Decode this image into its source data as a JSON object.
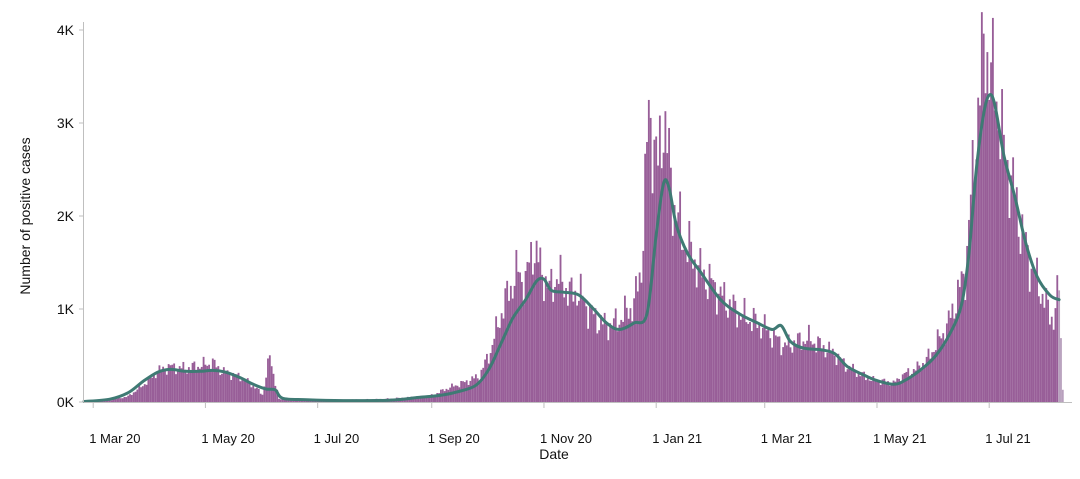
{
  "chart_data": {
    "type": "bar",
    "title": "",
    "xlabel": "Date",
    "ylabel": "Number of positive cases",
    "x_range": [
      "2020-02-25",
      "2021-08-15"
    ],
    "ylim": [
      0,
      4000
    ],
    "grid": false,
    "legend": "none",
    "yticks": [
      {
        "value": 0,
        "label": "0K"
      },
      {
        "value": 1000,
        "label": "1K"
      },
      {
        "value": 2000,
        "label": "2K"
      },
      {
        "value": 3000,
        "label": "3K"
      },
      {
        "value": 4000,
        "label": "4K"
      }
    ],
    "xticks": [
      {
        "date": "2020-03-01",
        "label": "1 Mar 20"
      },
      {
        "date": "2020-05-01",
        "label": "1 May 20"
      },
      {
        "date": "2020-07-01",
        "label": "1 Jul 20"
      },
      {
        "date": "2020-09-01",
        "label": "1 Sep 20"
      },
      {
        "date": "2020-11-01",
        "label": "1 Nov 20"
      },
      {
        "date": "2021-01-01",
        "label": "1 Jan 21"
      },
      {
        "date": "2021-03-01",
        "label": "1 Mar 21"
      },
      {
        "date": "2021-05-01",
        "label": "1 May 21"
      },
      {
        "date": "2021-07-01",
        "label": "1 Jul 21"
      }
    ],
    "colors": {
      "bars": "#985e98",
      "last_bars": "#b8a0bd",
      "trend": "#3f7a74"
    },
    "series": [
      {
        "type": "bar",
        "color": "#985e98",
        "points": [
          [
            "2020-03-01",
            10
          ],
          [
            "2020-03-10",
            20
          ],
          [
            "2020-03-20",
            60
          ],
          [
            "2020-03-28",
            180
          ],
          [
            "2020-04-05",
            330
          ],
          [
            "2020-04-12",
            380
          ],
          [
            "2020-04-20",
            360
          ],
          [
            "2020-04-28",
            390
          ],
          [
            "2020-05-05",
            420
          ],
          [
            "2020-05-10",
            330
          ],
          [
            "2020-05-20",
            270
          ],
          [
            "2020-05-28",
            160
          ],
          [
            "2020-06-01",
            80
          ],
          [
            "2020-06-05",
            490
          ],
          [
            "2020-06-10",
            30
          ],
          [
            "2020-06-20",
            20
          ],
          [
            "2020-07-01",
            20
          ],
          [
            "2020-07-20",
            25
          ],
          [
            "2020-08-05",
            30
          ],
          [
            "2020-08-20",
            50
          ],
          [
            "2020-09-01",
            70
          ],
          [
            "2020-09-10",
            150
          ],
          [
            "2020-09-20",
            220
          ],
          [
            "2020-09-27",
            280
          ],
          [
            "2020-10-03",
            550
          ],
          [
            "2020-10-08",
            900
          ],
          [
            "2020-10-13",
            1200
          ],
          [
            "2020-10-18",
            1400
          ],
          [
            "2020-10-22",
            1280
          ],
          [
            "2020-10-26",
            1680
          ],
          [
            "2020-10-30",
            1450
          ],
          [
            "2020-11-04",
            1200
          ],
          [
            "2020-11-08",
            1350
          ],
          [
            "2020-11-12",
            1260
          ],
          [
            "2020-11-16",
            1150
          ],
          [
            "2020-11-20",
            1200
          ],
          [
            "2020-11-25",
            1000
          ],
          [
            "2020-11-30",
            880
          ],
          [
            "2020-12-05",
            820
          ],
          [
            "2020-12-10",
            850
          ],
          [
            "2020-12-15",
            950
          ],
          [
            "2020-12-20",
            1050
          ],
          [
            "2020-12-24",
            1450
          ],
          [
            "2020-12-28",
            3120
          ],
          [
            "2021-01-02",
            2500
          ],
          [
            "2021-01-05",
            3100
          ],
          [
            "2021-01-10",
            2200
          ],
          [
            "2021-01-15",
            1800
          ],
          [
            "2021-01-20",
            1600
          ],
          [
            "2021-01-25",
            1400
          ],
          [
            "2021-01-30",
            1300
          ],
          [
            "2021-02-05",
            1150
          ],
          [
            "2021-02-10",
            1050
          ],
          [
            "2021-02-15",
            950
          ],
          [
            "2021-02-20",
            900
          ],
          [
            "2021-02-25",
            850
          ],
          [
            "2021-03-01",
            800
          ],
          [
            "2021-03-06",
            700
          ],
          [
            "2021-03-12",
            600
          ],
          [
            "2021-03-18",
            650
          ],
          [
            "2021-03-25",
            680
          ],
          [
            "2021-04-01",
            600
          ],
          [
            "2021-04-08",
            520
          ],
          [
            "2021-04-15",
            380
          ],
          [
            "2021-04-22",
            300
          ],
          [
            "2021-04-29",
            230
          ],
          [
            "2021-05-05",
            220
          ],
          [
            "2021-05-10",
            200
          ],
          [
            "2021-05-16",
            300
          ],
          [
            "2021-05-22",
            350
          ],
          [
            "2021-05-28",
            450
          ],
          [
            "2021-06-03",
            650
          ],
          [
            "2021-06-08",
            800
          ],
          [
            "2021-06-13",
            1100
          ],
          [
            "2021-06-18",
            1400
          ],
          [
            "2021-06-22",
            2400
          ],
          [
            "2021-06-25",
            3200
          ],
          [
            "2021-06-29",
            3900
          ],
          [
            "2021-07-02",
            3500
          ],
          [
            "2021-07-05",
            3300
          ],
          [
            "2021-07-09",
            2700
          ],
          [
            "2021-07-13",
            2400
          ],
          [
            "2021-07-18",
            1900
          ],
          [
            "2021-07-23",
            1500
          ],
          [
            "2021-07-28",
            1250
          ],
          [
            "2021-08-02",
            1000
          ],
          [
            "2021-08-05",
            880
          ],
          [
            "2021-08-08",
            1250
          ],
          [
            "2021-08-10",
            140
          ]
        ]
      },
      {
        "type": "line",
        "color": "#3f7a74",
        "points": [
          [
            "2020-02-25",
            5
          ],
          [
            "2020-03-10",
            30
          ],
          [
            "2020-03-20",
            100
          ],
          [
            "2020-03-28",
            220
          ],
          [
            "2020-04-05",
            320
          ],
          [
            "2020-04-12",
            350
          ],
          [
            "2020-04-20",
            330
          ],
          [
            "2020-04-28",
            330
          ],
          [
            "2020-05-05",
            340
          ],
          [
            "2020-05-12",
            320
          ],
          [
            "2020-05-20",
            260
          ],
          [
            "2020-05-27",
            190
          ],
          [
            "2020-06-03",
            140
          ],
          [
            "2020-06-08",
            130
          ],
          [
            "2020-06-12",
            40
          ],
          [
            "2020-06-25",
            25
          ],
          [
            "2020-07-15",
            15
          ],
          [
            "2020-08-10",
            20
          ],
          [
            "2020-08-25",
            50
          ],
          [
            "2020-09-05",
            70
          ],
          [
            "2020-09-15",
            110
          ],
          [
            "2020-09-25",
            180
          ],
          [
            "2020-10-02",
            350
          ],
          [
            "2020-10-08",
            600
          ],
          [
            "2020-10-15",
            900
          ],
          [
            "2020-10-22",
            1100
          ],
          [
            "2020-10-28",
            1300
          ],
          [
            "2020-11-01",
            1320
          ],
          [
            "2020-11-05",
            1200
          ],
          [
            "2020-11-12",
            1180
          ],
          [
            "2020-11-20",
            1150
          ],
          [
            "2020-11-28",
            1000
          ],
          [
            "2020-12-05",
            850
          ],
          [
            "2020-12-12",
            780
          ],
          [
            "2020-12-20",
            850
          ],
          [
            "2020-12-27",
            950
          ],
          [
            "2021-01-01",
            1800
          ],
          [
            "2021-01-05",
            2350
          ],
          [
            "2021-01-08",
            2300
          ],
          [
            "2021-01-12",
            1900
          ],
          [
            "2021-01-18",
            1600
          ],
          [
            "2021-01-25",
            1400
          ],
          [
            "2021-02-05",
            1100
          ],
          [
            "2021-02-15",
            950
          ],
          [
            "2021-02-25",
            850
          ],
          [
            "2021-03-05",
            780
          ],
          [
            "2021-03-10",
            820
          ],
          [
            "2021-03-15",
            650
          ],
          [
            "2021-03-22",
            580
          ],
          [
            "2021-04-01",
            560
          ],
          [
            "2021-04-08",
            520
          ],
          [
            "2021-04-15",
            380
          ],
          [
            "2021-04-25",
            280
          ],
          [
            "2021-05-01",
            230
          ],
          [
            "2021-05-10",
            190
          ],
          [
            "2021-05-16",
            230
          ],
          [
            "2021-05-25",
            350
          ],
          [
            "2021-06-02",
            500
          ],
          [
            "2021-06-10",
            750
          ],
          [
            "2021-06-16",
            1050
          ],
          [
            "2021-06-20",
            1600
          ],
          [
            "2021-06-24",
            2500
          ],
          [
            "2021-06-28",
            3100
          ],
          [
            "2021-07-01",
            3300
          ],
          [
            "2021-07-04",
            3200
          ],
          [
            "2021-07-09",
            2650
          ],
          [
            "2021-07-15",
            2200
          ],
          [
            "2021-07-21",
            1700
          ],
          [
            "2021-07-27",
            1350
          ],
          [
            "2021-08-03",
            1150
          ],
          [
            "2021-08-08",
            1100
          ]
        ]
      }
    ]
  }
}
